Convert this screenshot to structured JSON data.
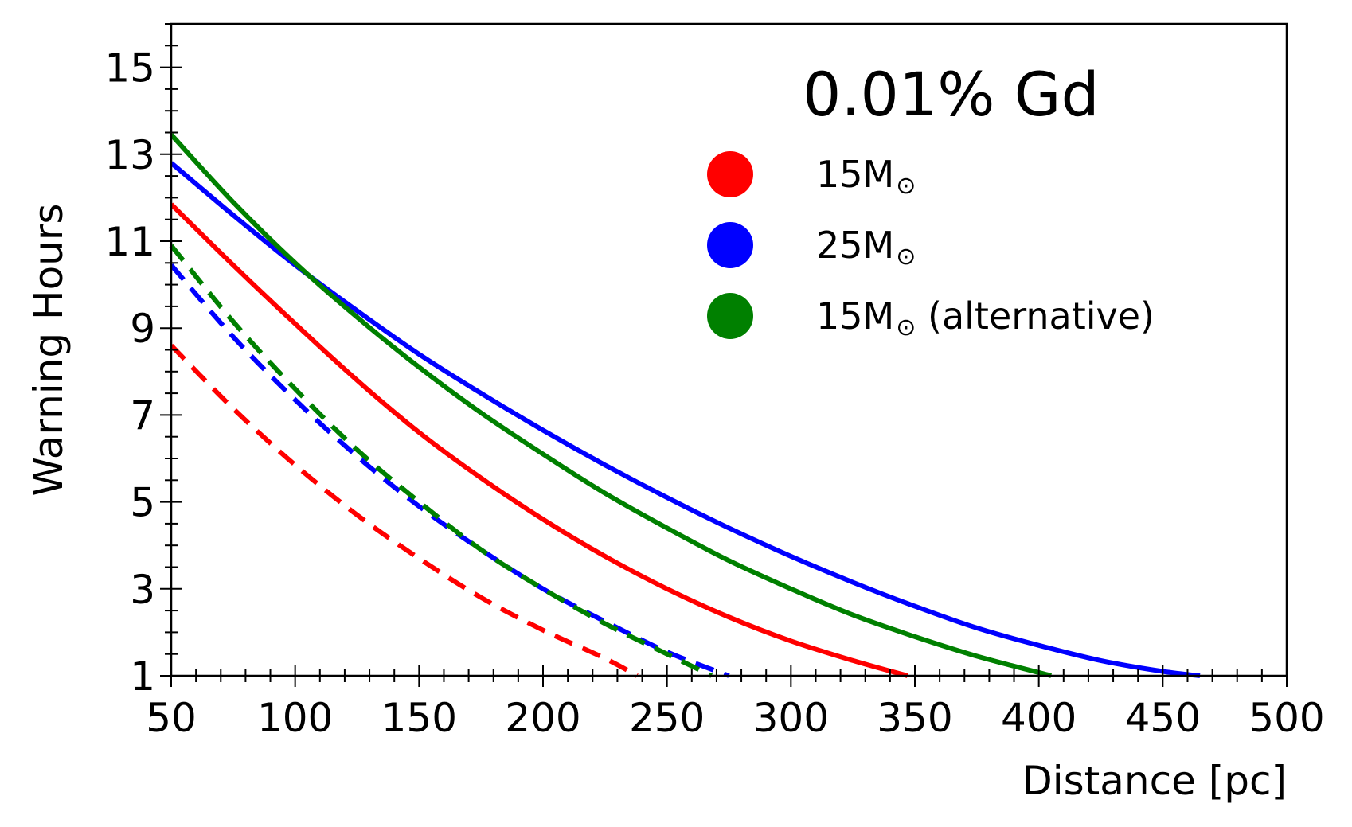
{
  "chart_data": {
    "type": "line",
    "title": "",
    "xlabel": "Distance [pc]",
    "ylabel": "Warning Hours",
    "xlim": [
      50,
      500
    ],
    "ylim": [
      1,
      16
    ],
    "x_ticks": [
      50,
      100,
      150,
      200,
      250,
      300,
      350,
      400,
      450,
      500
    ],
    "y_ticks": [
      1,
      3,
      5,
      7,
      9,
      11,
      13,
      15
    ],
    "x_minor_step": 10,
    "y_minor_step": 0.5,
    "grid": false,
    "legend": {
      "title": "0.01% Gd",
      "placement": "top-right",
      "entries": [
        {
          "label": "15M",
          "suffix": "",
          "color": "#ff0000"
        },
        {
          "label": "25M",
          "suffix": "",
          "color": "#0000ff"
        },
        {
          "label": "15M",
          "suffix": " (alternative)",
          "color": "#008000"
        }
      ],
      "solar_symbol": "⊙"
    },
    "series": [
      {
        "color": "#ff0000",
        "style": "solid",
        "x": [
          50,
          75,
          100,
          125,
          150,
          175,
          200,
          225,
          250,
          275,
          300,
          325,
          347
        ],
        "y": [
          11.85,
          10.45,
          9.1,
          7.8,
          6.6,
          5.55,
          4.6,
          3.75,
          3.0,
          2.35,
          1.8,
          1.35,
          1.0
        ]
      },
      {
        "color": "#0000ff",
        "style": "solid",
        "x": [
          50,
          75,
          100,
          125,
          150,
          175,
          200,
          225,
          250,
          275,
          300,
          325,
          350,
          375,
          400,
          425,
          450,
          465
        ],
        "y": [
          12.8,
          11.6,
          10.45,
          9.4,
          8.4,
          7.5,
          6.65,
          5.85,
          5.1,
          4.4,
          3.75,
          3.15,
          2.6,
          2.1,
          1.7,
          1.35,
          1.1,
          1.0
        ]
      },
      {
        "color": "#008000",
        "style": "solid",
        "x": [
          50,
          75,
          100,
          125,
          150,
          175,
          200,
          225,
          250,
          275,
          300,
          325,
          350,
          375,
          405
        ],
        "y": [
          13.45,
          11.9,
          10.5,
          9.25,
          8.1,
          7.05,
          6.1,
          5.2,
          4.4,
          3.65,
          3.0,
          2.4,
          1.9,
          1.45,
          1.0
        ]
      },
      {
        "color": "#ff0000",
        "style": "dashed",
        "x": [
          50,
          75,
          100,
          125,
          150,
          175,
          200,
          225,
          238
        ],
        "y": [
          8.6,
          7.15,
          5.85,
          4.7,
          3.7,
          2.8,
          2.05,
          1.4,
          1.0
        ]
      },
      {
        "color": "#0000ff",
        "style": "dashed",
        "x": [
          50,
          75,
          100,
          125,
          150,
          175,
          200,
          225,
          250,
          275
        ],
        "y": [
          10.45,
          8.8,
          7.35,
          6.05,
          4.9,
          3.9,
          3.0,
          2.25,
          1.55,
          1.0
        ]
      },
      {
        "color": "#008000",
        "style": "dashed",
        "x": [
          50,
          75,
          100,
          125,
          150,
          175,
          200,
          225,
          250,
          268
        ],
        "y": [
          10.9,
          9.15,
          7.6,
          6.2,
          5.0,
          3.9,
          3.0,
          2.2,
          1.5,
          1.0
        ]
      }
    ]
  }
}
